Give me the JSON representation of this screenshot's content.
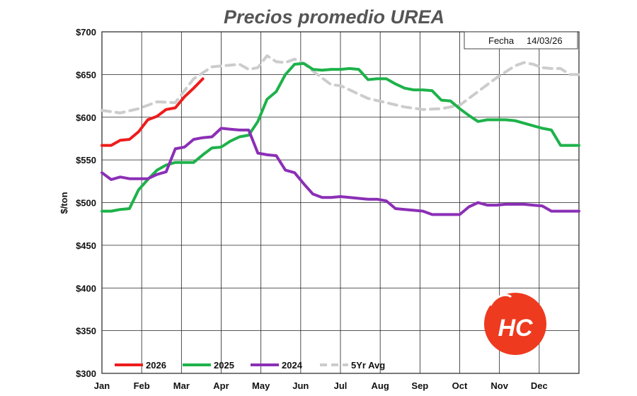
{
  "chart_data": {
    "type": "line",
    "title": "Precios promedio UREA",
    "ylabel": "$/ton",
    "xlabel": "",
    "ylim": [
      300,
      700
    ],
    "y_ticks": [
      300,
      350,
      400,
      450,
      500,
      550,
      600,
      650,
      700
    ],
    "y_tick_labels": [
      "$300",
      "$350",
      "$400",
      "$450",
      "$500",
      "$550",
      "$600",
      "$650",
      "$700"
    ],
    "x_tick_labels": [
      "Jan",
      "Feb",
      "Mar",
      "Apr",
      "May",
      "Jun",
      "Jul",
      "Aug",
      "Sep",
      "Oct",
      "Nov",
      "Dec"
    ],
    "x_unit": "week of year",
    "xlim": [
      1,
      53
    ],
    "grid": true,
    "legend_position": "bottom",
    "date_box": {
      "label": "Fecha",
      "value": "14/03/26"
    },
    "series": [
      {
        "name": "2026",
        "color": "#ee1c1c",
        "dashed": false,
        "x": [
          1,
          2,
          3,
          4,
          5,
          6,
          7,
          8,
          9,
          10,
          11,
          12
        ],
        "y": [
          567,
          567,
          573,
          574,
          583,
          597,
          601,
          609,
          611,
          624,
          634,
          645
        ]
      },
      {
        "name": "2025",
        "color": "#1db24a",
        "dashed": false,
        "x": [
          1,
          2,
          3,
          4,
          5,
          6,
          7,
          8,
          9,
          10,
          11,
          12,
          13,
          14,
          15,
          16,
          17,
          18,
          19,
          20,
          21,
          22,
          23,
          24,
          25,
          26,
          27,
          28,
          29,
          30,
          31,
          32,
          33,
          34,
          35,
          36,
          37,
          38,
          39,
          40,
          41,
          42,
          43,
          44,
          45,
          46,
          47,
          48,
          49,
          50,
          51,
          52,
          53
        ],
        "y": [
          490,
          490,
          492,
          493,
          515,
          527,
          538,
          544,
          547,
          547,
          547,
          556,
          564,
          565,
          572,
          577,
          579,
          595,
          621,
          630,
          650,
          662,
          663,
          656,
          655,
          656,
          656,
          657,
          656,
          644,
          645,
          645,
          639,
          634,
          632,
          632,
          631,
          620,
          619,
          610,
          602,
          595,
          597,
          597,
          597,
          596,
          593,
          590,
          587,
          585,
          567,
          567,
          567
        ]
      },
      {
        "name": "2024",
        "color": "#8b2fb6",
        "dashed": false,
        "x": [
          1,
          2,
          3,
          4,
          5,
          6,
          7,
          8,
          9,
          10,
          11,
          12,
          13,
          14,
          15,
          16,
          17,
          18,
          19,
          20,
          21,
          22,
          23,
          24,
          25,
          26,
          27,
          28,
          29,
          30,
          31,
          32,
          33,
          34,
          35,
          36,
          37,
          38,
          39,
          40,
          41,
          42,
          43,
          44,
          45,
          46,
          47,
          48,
          49,
          50,
          51,
          52,
          53
        ],
        "y": [
          535,
          527,
          530,
          528,
          528,
          528,
          533,
          536,
          563,
          565,
          574,
          576,
          577,
          587,
          586,
          585,
          585,
          558,
          556,
          555,
          538,
          535,
          522,
          510,
          506,
          506,
          507,
          506,
          505,
          504,
          504,
          502,
          493,
          492,
          491,
          490,
          486,
          486,
          486,
          486,
          495,
          500,
          497,
          497,
          498,
          498,
          498,
          497,
          496,
          490,
          490,
          490,
          490
        ]
      },
      {
        "name": "5Yr Avg",
        "color": "#cccccc",
        "dashed": true,
        "x": [
          1,
          3,
          5,
          7,
          9,
          11,
          13,
          15,
          16,
          17,
          18,
          19,
          20,
          21,
          22,
          23,
          24,
          25,
          26,
          27,
          28,
          30,
          32,
          34,
          36,
          38,
          40,
          42,
          44,
          46,
          47,
          48,
          49,
          50,
          51,
          52,
          53
        ],
        "y": [
          608,
          605,
          610,
          618,
          617,
          645,
          659,
          661,
          662,
          656,
          658,
          672,
          665,
          664,
          668,
          663,
          654,
          646,
          638,
          637,
          632,
          622,
          617,
          612,
          609,
          610,
          614,
          630,
          646,
          660,
          664,
          662,
          658,
          657,
          657,
          650,
          650
        ]
      }
    ]
  },
  "logo": {
    "text": "HC"
  }
}
